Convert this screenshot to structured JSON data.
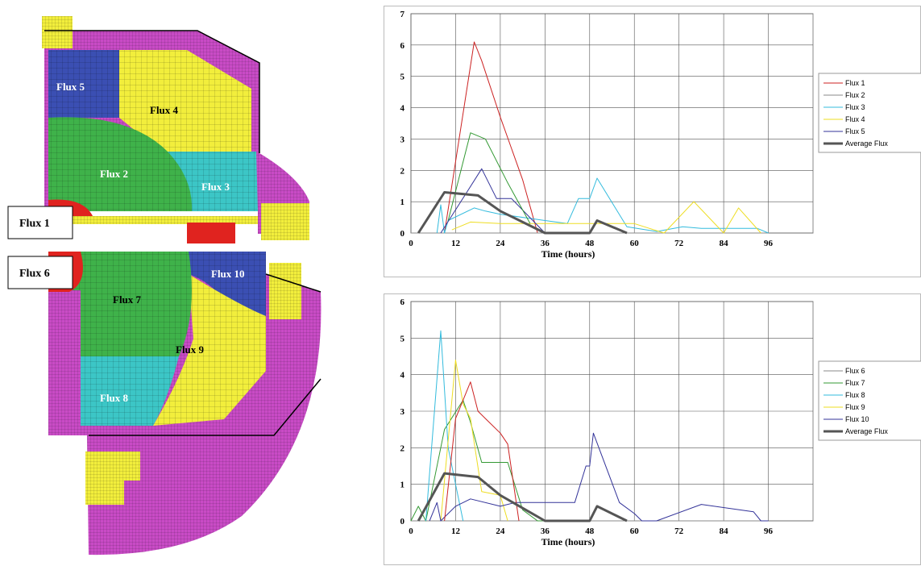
{
  "diagram": {
    "callouts": [
      "Flux 1",
      "Flux 6"
    ],
    "zones": {
      "flux2": "Flux 2",
      "flux3": "Flux 3",
      "flux4": "Flux 4",
      "flux5": "Flux 5",
      "flux7": "Flux 7",
      "flux8": "Flux 8",
      "flux9": "Flux 9",
      "flux10": "Flux 10"
    },
    "colors": {
      "magenta": "#c94bc6",
      "yellow": "#f2ee3c",
      "blue": "#3b4fb3",
      "green": "#3fb24a",
      "cyan": "#3cc6c6",
      "red": "#e0231f"
    }
  },
  "chart_data": [
    {
      "type": "line",
      "title": "",
      "xlabel": "Time (hours)",
      "ylabel": "",
      "xlim": [
        0,
        108
      ],
      "ylim": [
        0,
        7
      ],
      "xticks": [
        0,
        12,
        24,
        36,
        48,
        60,
        72,
        84,
        96
      ],
      "yticks": [
        0,
        1,
        2,
        3,
        4,
        5,
        6,
        7
      ],
      "grid": true,
      "legend_position": "right",
      "series": [
        {
          "name": "Flux 1",
          "color": "#cc2222",
          "width": 1,
          "x": [
            9,
            17,
            19,
            24,
            30,
            34
          ],
          "y": [
            0,
            6.1,
            5.5,
            3.7,
            1.7,
            0
          ]
        },
        {
          "name": "Flux 2",
          "color": "#888888",
          "width": 1,
          "x": [
            0,
            96
          ],
          "y": [
            0,
            0
          ]
        },
        {
          "name": "Flux 3",
          "color": "#33bbdd",
          "width": 1,
          "x": [
            7,
            8,
            9,
            10,
            17,
            20,
            24,
            36,
            42,
            45,
            48,
            50,
            58,
            66,
            73,
            78,
            87,
            93,
            96
          ],
          "y": [
            0,
            0.9,
            0,
            0.4,
            0.8,
            0.7,
            0.6,
            0.4,
            0.3,
            1.1,
            1.1,
            1.75,
            0.2,
            0.05,
            0.2,
            0.15,
            0.15,
            0.15,
            0
          ],
          "pad": 0
        },
        {
          "name": "Flux 4",
          "color": "#eedd22",
          "width": 1,
          "x": [
            11,
            16,
            24,
            36,
            48,
            60,
            64,
            68,
            76,
            84,
            88,
            94
          ],
          "y": [
            0.1,
            0.35,
            0.3,
            0.3,
            0.3,
            0.3,
            0.15,
            0,
            1.0,
            0,
            0.8,
            0
          ]
        },
        {
          "name": "Flux 5",
          "color": "#333399",
          "width": 1,
          "x": [
            8,
            15,
            19,
            23,
            27,
            36
          ],
          "y": [
            0,
            1.3,
            2.05,
            1.1,
            1.1,
            0
          ]
        },
        {
          "name": "Average Flux",
          "color": "#555555",
          "width": 3,
          "x": [
            2,
            9,
            18,
            24,
            36,
            48,
            50,
            58
          ],
          "y": [
            0,
            1.3,
            1.2,
            0.7,
            0,
            0,
            0.4,
            0
          ]
        },
        {
          "name": "",
          "color": "#339933",
          "width": 1,
          "x": [
            10,
            16,
            20,
            26,
            32
          ],
          "y": [
            0.4,
            3.2,
            3.0,
            1.6,
            0.3
          ]
        }
      ]
    },
    {
      "type": "line",
      "title": "",
      "xlabel": "Time (hours)",
      "ylabel": "",
      "xlim": [
        0,
        108
      ],
      "ylim": [
        0,
        6
      ],
      "xticks": [
        0,
        12,
        24,
        36,
        48,
        60,
        72,
        84,
        96
      ],
      "yticks": [
        0,
        1,
        2,
        3,
        4,
        5,
        6
      ],
      "grid": true,
      "legend_position": "right",
      "series": [
        {
          "name": "Flux 6",
          "color": "#888888",
          "width": 1,
          "x": [
            0,
            96
          ],
          "y": [
            0,
            0
          ]
        },
        {
          "name": "Flux 7",
          "color": "#339933",
          "width": 1,
          "x": [
            0,
            2,
            4,
            9,
            14,
            16,
            19,
            22,
            26,
            30,
            34,
            38
          ],
          "y": [
            0,
            0.4,
            0,
            2.5,
            3.3,
            2.7,
            1.6,
            1.6,
            1.6,
            0.3,
            0,
            0
          ]
        },
        {
          "name": "Flux 8",
          "color": "#33bbdd",
          "width": 1,
          "x": [
            4,
            8,
            10,
            12,
            14
          ],
          "y": [
            0,
            5.2,
            2.0,
            1.0,
            0
          ]
        },
        {
          "name": "Flux 9",
          "color": "#eedd22",
          "width": 1,
          "x": [
            8,
            12,
            14,
            16,
            19,
            24,
            26
          ],
          "y": [
            0,
            4.4,
            3.2,
            2.8,
            0.8,
            0.7,
            0
          ]
        },
        {
          "name": "Flux 10",
          "color": "#333399",
          "width": 1,
          "x": [
            5,
            7,
            8,
            12,
            16,
            24,
            28,
            36,
            44,
            47,
            48,
            49,
            56,
            60,
            62,
            66,
            78,
            92,
            94,
            96
          ],
          "y": [
            0,
            0.5,
            0,
            0.4,
            0.6,
            0.4,
            0.5,
            0.5,
            0.5,
            1.5,
            1.5,
            2.4,
            0.5,
            0.2,
            0,
            0,
            0.45,
            0.25,
            0,
            0
          ]
        },
        {
          "name": "Average Flux",
          "color": "#555555",
          "width": 3,
          "x": [
            2,
            9,
            18,
            24,
            36,
            48,
            50,
            58
          ],
          "y": [
            0,
            1.3,
            1.2,
            0.7,
            0,
            0,
            0.4,
            0
          ]
        },
        {
          "name": "",
          "color": "#cc2222",
          "width": 1,
          "x": [
            9,
            12,
            16,
            18,
            20,
            24,
            26,
            29
          ],
          "y": [
            0,
            2.8,
            3.8,
            3.0,
            2.8,
            2.4,
            2.1,
            0
          ]
        }
      ]
    }
  ]
}
